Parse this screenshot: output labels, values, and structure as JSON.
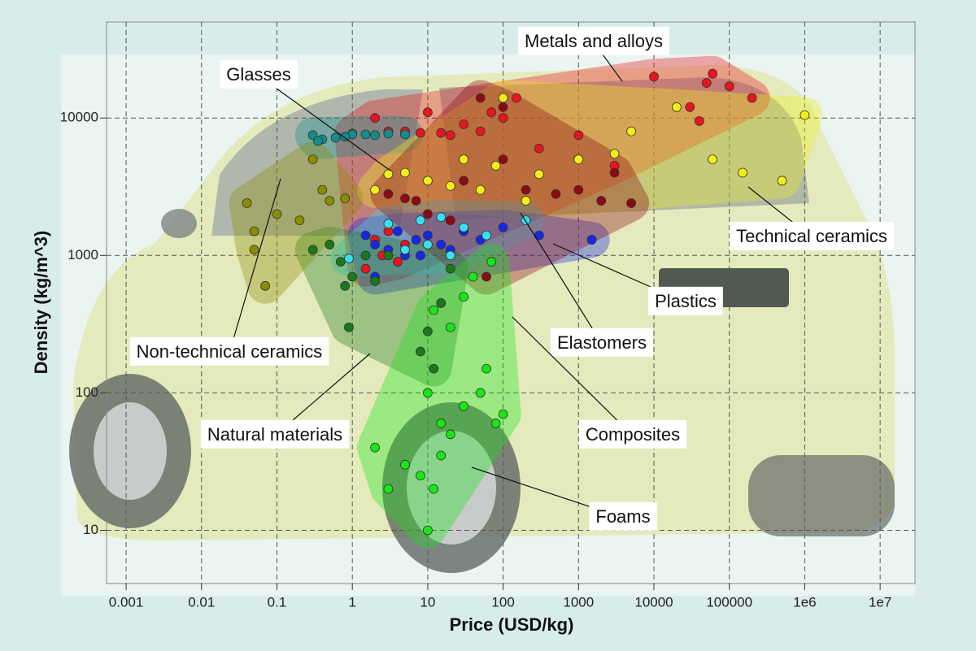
{
  "chart_data": {
    "type": "scatter",
    "x_label": "Price (USD/kg)",
    "y_label": "Density (kg/m^3)",
    "log_x": true,
    "log_y": true,
    "grid": true,
    "xlim": [
      0.00055,
      29000000
    ],
    "ylim": [
      4.1,
      50000
    ],
    "xticks": [
      0.001,
      0.01,
      0.1,
      1,
      10,
      100,
      1000,
      10000,
      100000,
      {
        "value": 1000000,
        "label": "1e6"
      },
      {
        "value": 10000000,
        "label": "1e7"
      }
    ],
    "yticks": [
      10,
      100,
      1000,
      10000
    ],
    "series": [
      {
        "name": "Metals and alloys",
        "color": "#e8141e",
        "x": [
          2,
          3,
          5,
          8,
          15,
          20,
          30,
          50,
          70,
          150,
          300,
          1000,
          3000,
          10000,
          30000,
          50000,
          60000,
          100000,
          200000,
          40000,
          2,
          3,
          5,
          2.5,
          4,
          1.5,
          20,
          1,
          10,
          100
        ],
        "y": [
          10000,
          8000,
          8000,
          7800,
          7800,
          7500,
          9000,
          8000,
          11000,
          14000,
          6000,
          7500,
          4500,
          20000,
          12000,
          18000,
          21000,
          17000,
          14000,
          9500,
          1300,
          1500,
          1200,
          1000,
          900,
          800,
          1800,
          7700,
          11000,
          10000
        ]
      },
      {
        "name": "Glasses",
        "color": "#138c8c",
        "x": [
          0.3,
          0.4,
          0.6,
          1,
          1.5,
          2,
          3,
          5,
          0.35,
          0.8
        ],
        "y": [
          7500,
          7000,
          7200,
          7600,
          7600,
          7500,
          7700,
          7600,
          6800,
          7300
        ]
      },
      {
        "name": "Technical ceramics",
        "color": "#f2ee1a",
        "x": [
          2,
          3,
          5,
          10,
          20,
          30,
          50,
          80,
          100,
          300,
          1000,
          3000,
          20000,
          60000,
          150000,
          500000,
          1000000,
          5000,
          200
        ],
        "y": [
          3000,
          3900,
          4000,
          3500,
          3200,
          5000,
          3000,
          4500,
          14000,
          3900,
          5000,
          5500,
          12000,
          5000,
          4000,
          3500,
          10500,
          8000,
          2500
        ]
      },
      {
        "name": "Plastics",
        "color": "#1428e6",
        "x": [
          1.5,
          2,
          3,
          4,
          5,
          7,
          10,
          15,
          20,
          30,
          50,
          100,
          300,
          1500,
          2,
          8
        ],
        "y": [
          1400,
          1200,
          1100,
          1500,
          1000,
          1300,
          1400,
          1200,
          1100,
          1500,
          1300,
          1600,
          1400,
          1300,
          700,
          1000
        ]
      },
      {
        "name": "Elastomers",
        "color": "#38e0f0",
        "x": [
          0.9,
          3,
          5,
          8,
          15,
          30,
          60,
          200,
          10,
          20
        ],
        "y": [
          950,
          1700,
          1100,
          1800,
          1900,
          1600,
          1400,
          1800,
          1200,
          1000
        ]
      },
      {
        "name": "Composites",
        "color": "#8c0a14",
        "x": [
          3,
          5,
          10,
          20,
          50,
          100,
          200,
          500,
          1000,
          2000,
          3000,
          5000,
          100,
          30,
          7,
          60
        ],
        "y": [
          2800,
          2600,
          2000,
          1800,
          14000,
          12000,
          3000,
          2800,
          3000,
          2500,
          4000,
          2400,
          5000,
          3500,
          2500,
          700
        ]
      },
      {
        "name": "Natural materials",
        "color": "#1a7a1a",
        "x": [
          0.8,
          0.7,
          0.9,
          1,
          1.5,
          2,
          3,
          0.5,
          0.3,
          10,
          8,
          12,
          15,
          20
        ],
        "y": [
          600,
          900,
          300,
          700,
          1000,
          650,
          1000,
          1200,
          1100,
          280,
          200,
          150,
          450,
          800
        ]
      },
      {
        "name": "Foams",
        "color": "#18e618",
        "x": [
          10,
          12,
          15,
          20,
          30,
          50,
          60,
          80,
          2,
          3,
          5,
          8,
          10,
          20,
          30,
          40,
          70,
          100,
          15,
          12
        ],
        "y": [
          10,
          20,
          35,
          50,
          80,
          100,
          150,
          60,
          40,
          20,
          30,
          25,
          100,
          300,
          500,
          700,
          900,
          70,
          60,
          400
        ]
      },
      {
        "name": "Non-technical ceramics",
        "color": "#8c8c00",
        "x": [
          0.04,
          0.05,
          0.1,
          0.07,
          0.3,
          0.5,
          0.8,
          0.2,
          0.05,
          0.4
        ],
        "y": [
          2400,
          1500,
          2000,
          600,
          5000,
          2500,
          2600,
          1800,
          1100,
          3000
        ]
      }
    ]
  }
}
